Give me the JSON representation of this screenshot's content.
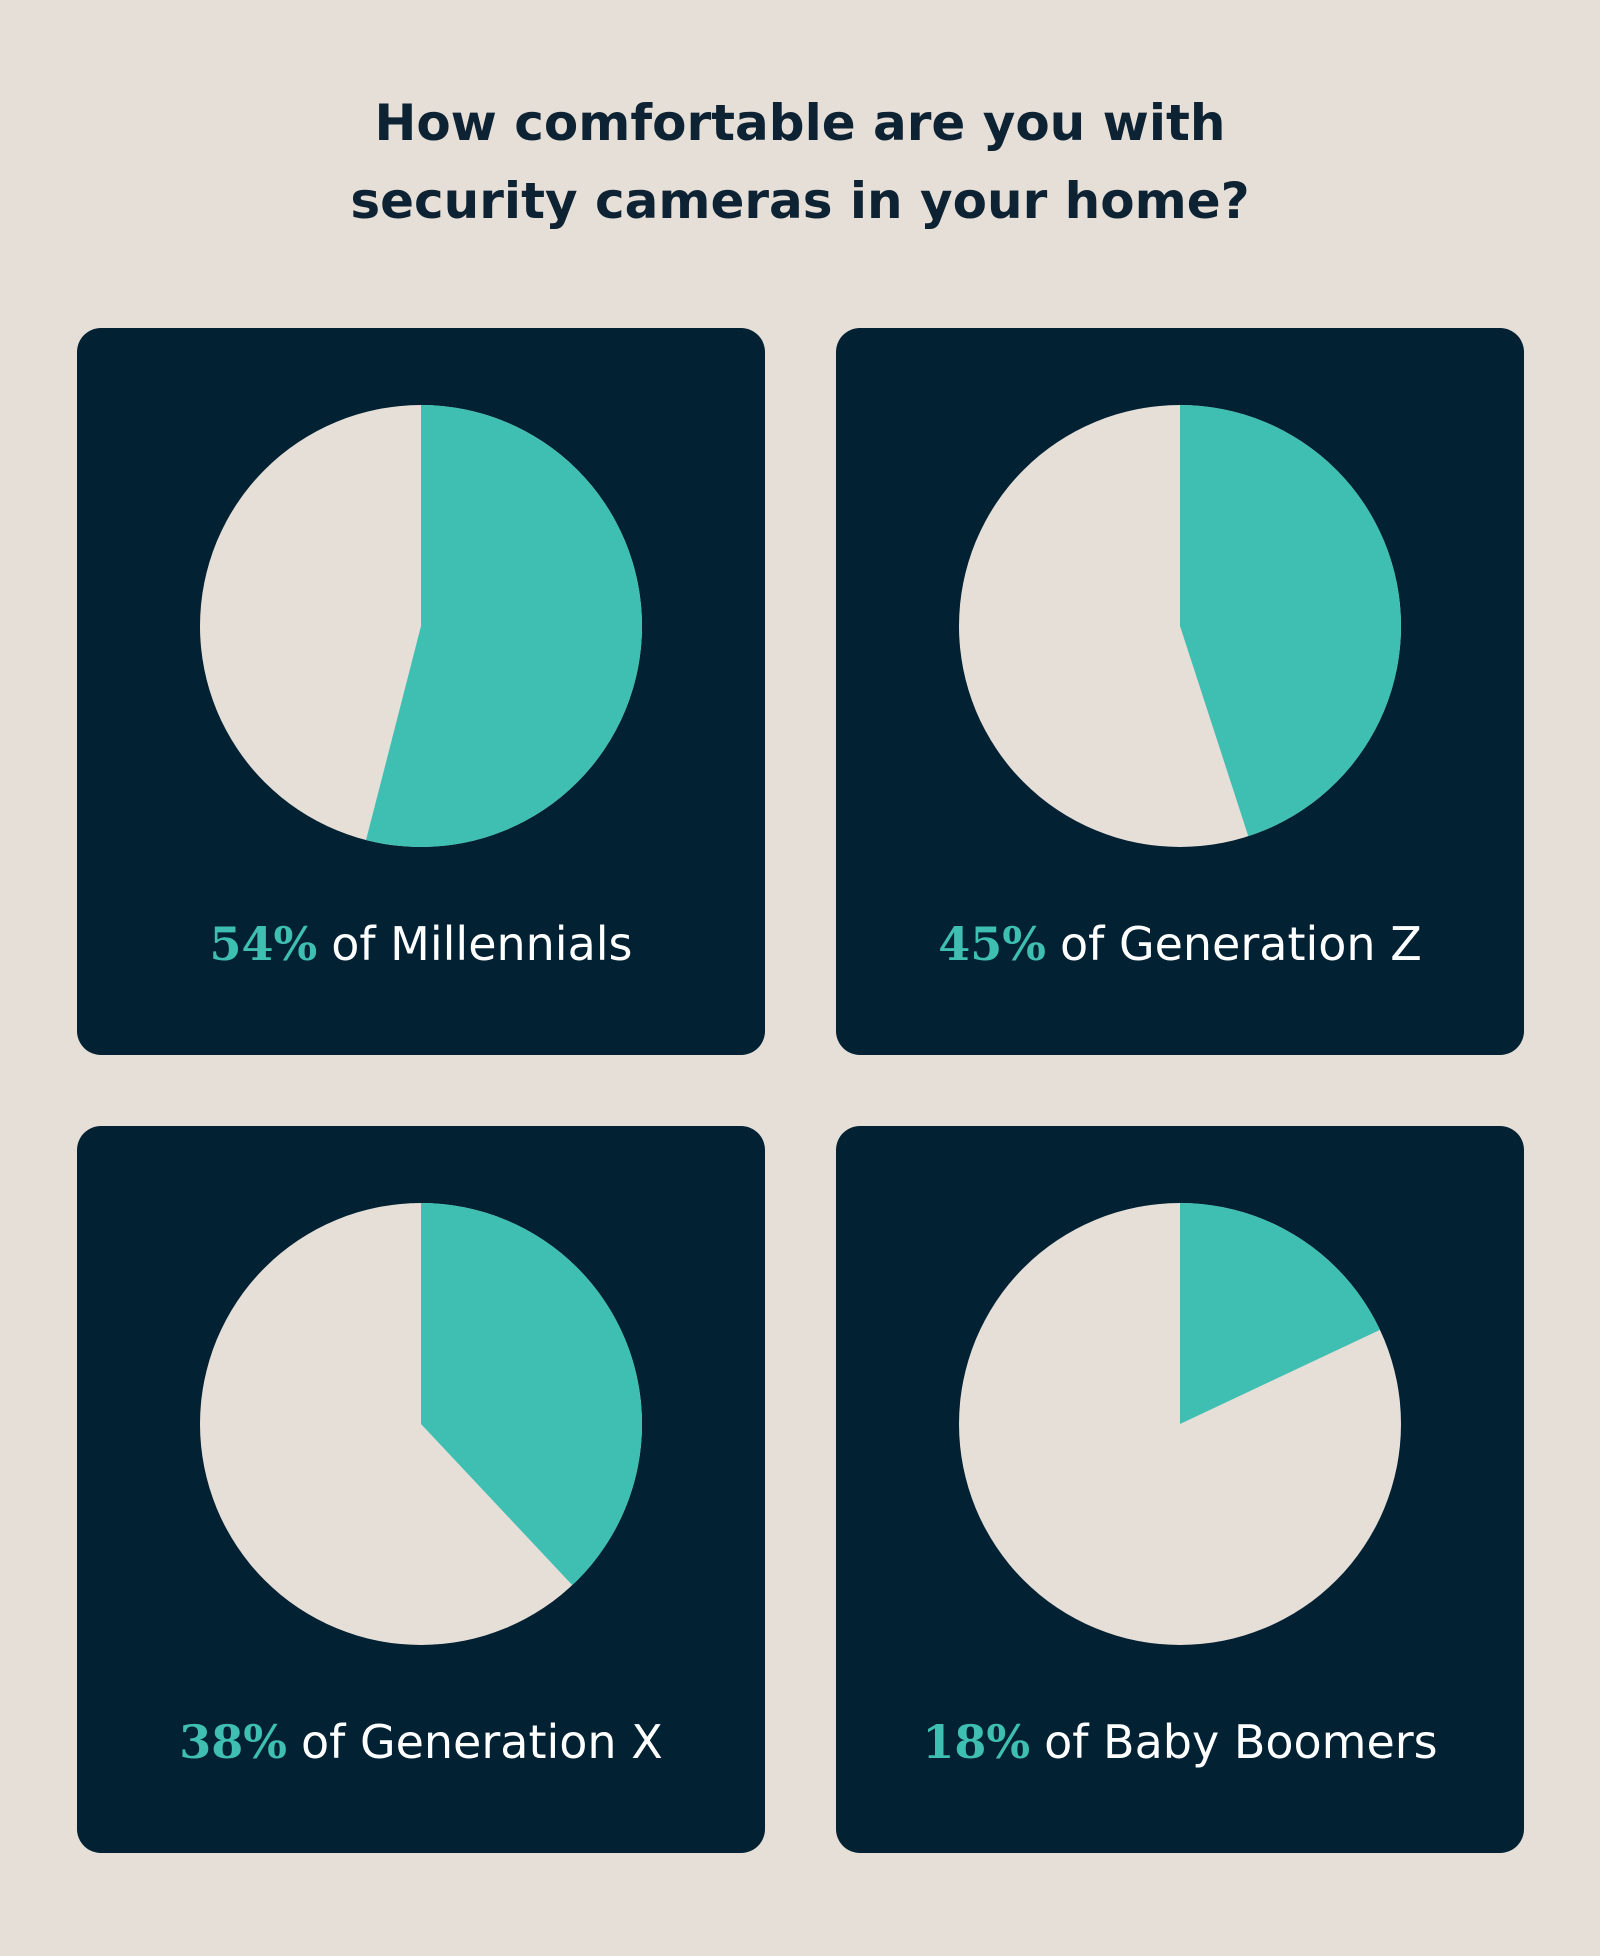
{
  "title": [
    "How comfortable are you with",
    "security cameras in your home?"
  ],
  "background_color": "#e6dfd8",
  "panel_color": "#022133",
  "chart_data": [
    {
      "type": "pie",
      "categories": [
        "of Millennials"
      ],
      "values": [
        54
      ],
      "value_labels": [
        "54%"
      ],
      "color": "#3fbfb2",
      "rest_color": "#e6dfd8"
    },
    {
      "type": "pie",
      "categories": [
        "of Generation Z"
      ],
      "values": [
        45
      ],
      "value_labels": [
        "45%"
      ],
      "color": "#3fbfb2",
      "rest_color": "#e6dfd8"
    },
    {
      "type": "pie",
      "categories": [
        "of Generation X"
      ],
      "values": [
        38
      ],
      "value_labels": [
        "38%"
      ],
      "color": "#3fbfb2",
      "rest_color": "#e6dfd8"
    },
    {
      "type": "pie",
      "categories": [
        "of Baby Boomers"
      ],
      "values": [
        18
      ],
      "value_labels": [
        "18%"
      ],
      "color": "#3fbfb2",
      "rest_color": "#e6dfd8"
    }
  ]
}
